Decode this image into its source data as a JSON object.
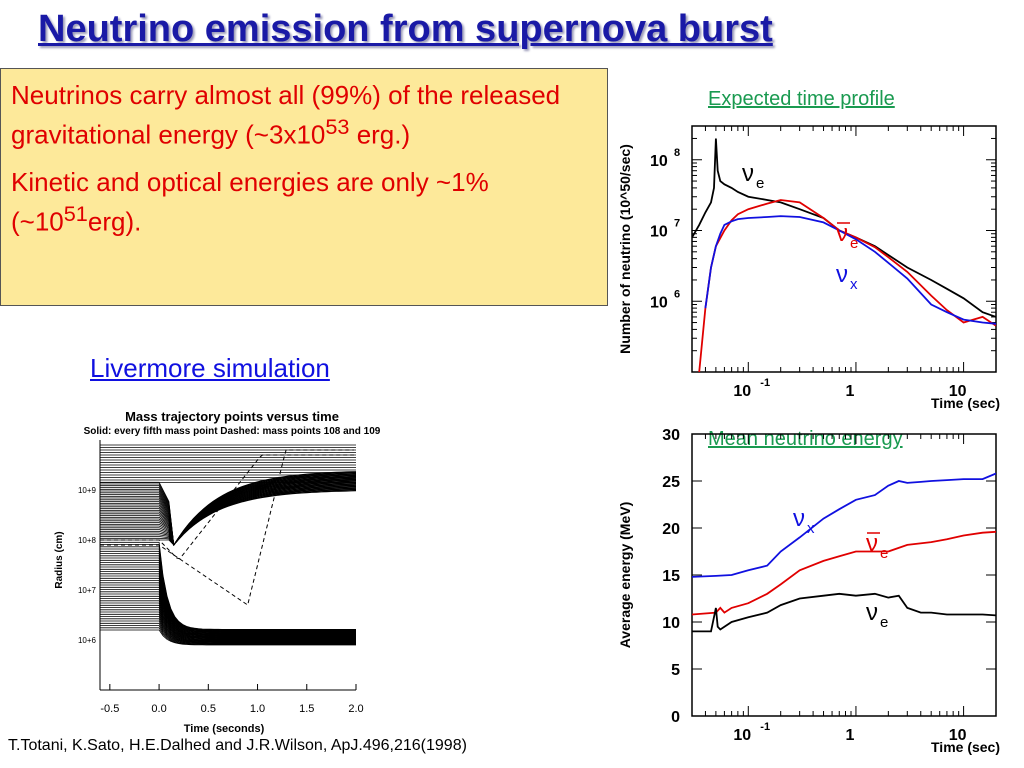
{
  "slide": {
    "title": "Neutrino emission from supernova burst",
    "bullets": [
      {
        "text": "Neutrinos carry almost all (99%) of the released gravitational energy (~3x10",
        "sup": "53",
        "tail": " erg.)"
      },
      {
        "text": "Kinetic and optical energies are only ~1%(~10",
        "sup": "51",
        "tail": "erg)."
      }
    ],
    "simulation_label": "Livermore simulation",
    "citation": "T.Totani, K.Sato, H.E.Dalhed and J.R.Wilson, ApJ.496,216(1998)",
    "colors": {
      "title": "#1a1aa6",
      "bullet_text": "#e00000",
      "box": "#fde99a",
      "green_label": "#1a9a50",
      "link_blue": "#1010e0"
    }
  },
  "chart_data": [
    {
      "type": "line",
      "title": "Expected time profile",
      "xlabel": "Time (sec)",
      "ylabel": "Number of neutrino (10^50/sec)",
      "xscale": "log",
      "yscale": "log",
      "xlim": [
        0.03,
        20
      ],
      "ylim": [
        100000,
        300000000
      ],
      "x_ticks": [
        {
          "v": 0.1,
          "base": "10",
          "exp": "-1"
        },
        {
          "v": 1,
          "base": "1",
          "exp": ""
        },
        {
          "v": 10,
          "base": "10",
          "exp": ""
        }
      ],
      "y_ticks": [
        {
          "v": 1000000,
          "base": "10",
          "exp": "6"
        },
        {
          "v": 10000000,
          "base": "10",
          "exp": "7"
        },
        {
          "v": 100000000,
          "base": "10",
          "exp": "8"
        }
      ],
      "series": [
        {
          "name": "νe",
          "color": "#000000",
          "x": [
            0.03,
            0.035,
            0.04,
            0.045,
            0.048,
            0.05,
            0.052,
            0.055,
            0.06,
            0.07,
            0.08,
            0.1,
            0.15,
            0.2,
            0.3,
            0.5,
            0.7,
            1,
            1.5,
            2,
            3,
            5,
            7,
            10,
            15,
            20
          ],
          "y": [
            8000000,
            12000000,
            18000000,
            25000000,
            40000000,
            200000000,
            70000000,
            50000000,
            45000000,
            40000000,
            35000000,
            30000000,
            27000000,
            25000000,
            20000000,
            15000000,
            10000000,
            8000000,
            6000000,
            4500000,
            3000000,
            2000000,
            1500000,
            1100000,
            700000,
            600000
          ]
        },
        {
          "name": "ν̄e",
          "color": "#e00000",
          "x": [
            0.035,
            0.04,
            0.045,
            0.05,
            0.06,
            0.07,
            0.08,
            0.1,
            0.15,
            0.2,
            0.3,
            0.5,
            0.7,
            1,
            1.5,
            2,
            3,
            5,
            7,
            10,
            15,
            20
          ],
          "y": [
            100000,
            800000,
            3000000,
            6000000,
            10000000,
            14000000,
            17000000,
            20000000,
            24000000,
            27000000,
            25000000,
            15000000,
            10000000,
            8000000,
            5800000,
            4200000,
            2600000,
            1200000,
            750000,
            500000,
            600000,
            450000
          ]
        },
        {
          "name": "νx",
          "color": "#1010e0",
          "x": [
            0.04,
            0.045,
            0.05,
            0.055,
            0.06,
            0.07,
            0.08,
            0.1,
            0.15,
            0.2,
            0.3,
            0.5,
            0.7,
            1,
            1.5,
            2,
            3,
            5,
            7,
            10,
            15,
            20
          ],
          "y": [
            800000,
            3000000,
            6000000,
            9000000,
            12000000,
            13500000,
            14500000,
            15000000,
            15500000,
            16000000,
            15500000,
            13000000,
            10000000,
            7500000,
            5000000,
            3500000,
            2100000,
            900000,
            700000,
            550000,
            500000,
            480000
          ]
        }
      ]
    },
    {
      "type": "line",
      "title": "Mean neutrino energy",
      "xlabel": "Time (sec)",
      "ylabel": "Average energy (MeV)",
      "xscale": "log",
      "yscale": "linear",
      "xlim": [
        0.03,
        20
      ],
      "ylim": [
        0,
        30
      ],
      "x_ticks": [
        {
          "v": 0.1,
          "base": "10",
          "exp": "-1"
        },
        {
          "v": 1,
          "base": "1",
          "exp": ""
        },
        {
          "v": 10,
          "base": "10",
          "exp": ""
        }
      ],
      "y_ticks": [
        0,
        5,
        10,
        15,
        20,
        25,
        30
      ],
      "series": [
        {
          "name": "νx",
          "color": "#1010e0",
          "x": [
            0.03,
            0.05,
            0.07,
            0.1,
            0.15,
            0.2,
            0.3,
            0.5,
            0.7,
            1,
            1.5,
            2,
            2.5,
            3,
            4,
            5,
            7,
            10,
            15,
            20
          ],
          "y": [
            14.8,
            14.9,
            15,
            15.5,
            16,
            17.5,
            19,
            21,
            22,
            23,
            23.5,
            24.5,
            25,
            24.8,
            24.9,
            25,
            25.1,
            25.2,
            25.2,
            25.8
          ]
        },
        {
          "name": "ν̄e",
          "color": "#e00000",
          "x": [
            0.03,
            0.05,
            0.055,
            0.06,
            0.07,
            0.1,
            0.15,
            0.2,
            0.3,
            0.5,
            0.7,
            1,
            1.5,
            2,
            3,
            5,
            7,
            10,
            15,
            20
          ],
          "y": [
            10.8,
            11,
            11.5,
            11,
            11.5,
            12,
            13,
            14,
            15.5,
            16.5,
            17,
            17.5,
            17.5,
            17.5,
            18.2,
            18.5,
            18.8,
            19.2,
            19.5,
            19.6
          ]
        },
        {
          "name": "νe",
          "color": "#000000",
          "x": [
            0.03,
            0.045,
            0.05,
            0.052,
            0.055,
            0.06,
            0.07,
            0.1,
            0.15,
            0.2,
            0.3,
            0.5,
            0.7,
            1,
            1.5,
            2,
            2.5,
            3,
            4,
            5,
            7,
            10,
            15,
            20
          ],
          "y": [
            9,
            9,
            11.5,
            9.5,
            9.2,
            9.5,
            10,
            10.5,
            11,
            11.8,
            12.5,
            12.8,
            13,
            12.8,
            13,
            12.6,
            12.8,
            11.5,
            11,
            11,
            10.8,
            10.8,
            10.8,
            10.7
          ]
        }
      ]
    },
    {
      "type": "line",
      "title": "Mass trajectory points versus time",
      "subtitle": "Solid: every fifth mass point  Dashed: mass points 108 and 109",
      "xlabel": "Time (seconds)",
      "ylabel": "Radius (cm)",
      "xscale": "linear",
      "yscale": "log",
      "xlim": [
        -0.6,
        2.0
      ],
      "ylim": [
        100000,
        10000000000
      ],
      "x_ticks": [
        {
          "v": -0.5,
          "label": "-0.5"
        },
        {
          "v": 0,
          "label": "0.0"
        },
        {
          "v": 0.5,
          "label": "0.5"
        },
        {
          "v": 1,
          "label": "1.0"
        },
        {
          "v": 1.5,
          "label": "1.5"
        },
        {
          "v": 2,
          "label": "2.0"
        }
      ],
      "y_ticks": [
        {
          "v": 1000000,
          "label": "10+6"
        },
        {
          "v": 10000000,
          "label": "10+7"
        },
        {
          "v": 100000000,
          "label": "10+8"
        },
        {
          "v": 1000000000,
          "label": "10+9"
        }
      ]
    }
  ]
}
